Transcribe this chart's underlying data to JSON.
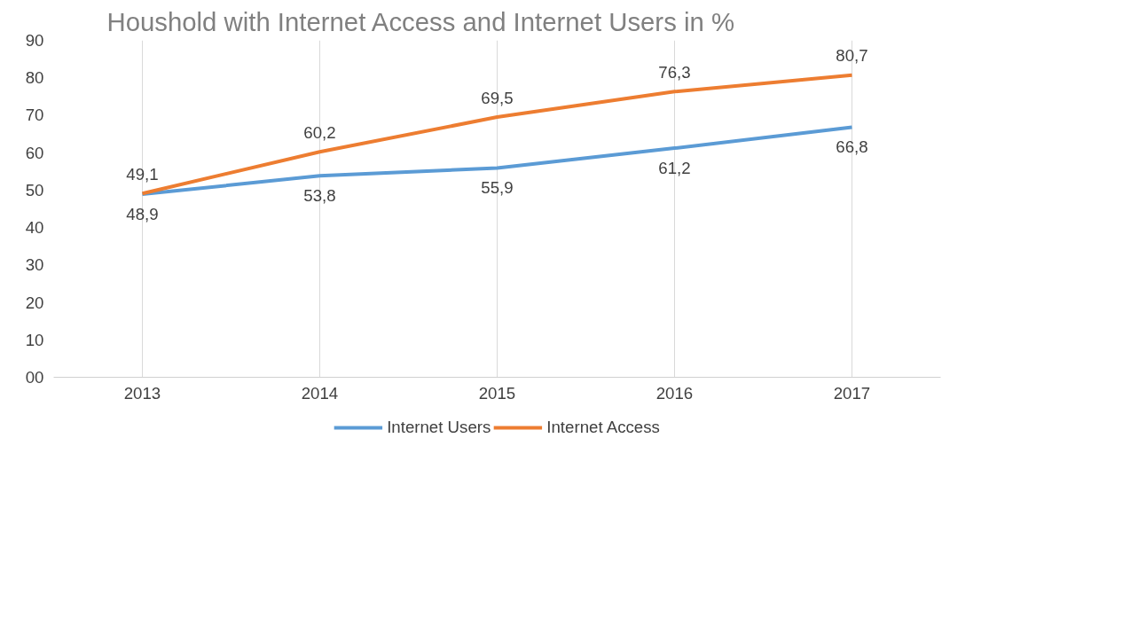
{
  "chart_data": {
    "type": "line",
    "title": "Houshold with Internet Access and Internet Users in %",
    "categories": [
      "2013",
      "2014",
      "2015",
      "2016",
      "2017"
    ],
    "series": [
      {
        "name": "Internet Users",
        "color": "#5b9bd5",
        "values": [
          48.9,
          53.8,
          55.9,
          61.2,
          66.8
        ],
        "value_labels": [
          "48,9",
          "53,8",
          "55,9",
          "61,2",
          "66,8"
        ]
      },
      {
        "name": "Internet Access",
        "color": "#ed7d31",
        "values": [
          49.1,
          60.2,
          69.5,
          76.3,
          80.7
        ],
        "value_labels": [
          "49,1",
          "60,2",
          "69,5",
          "76,3",
          "80,7"
        ]
      }
    ],
    "ylim": [
      0,
      90
    ],
    "yticks": [
      {
        "value": 0,
        "label": "00"
      },
      10,
      20,
      30,
      40,
      50,
      60,
      70,
      80,
      90
    ],
    "grid": "x",
    "legend": "bottom",
    "marker": "none",
    "line_style": "solid"
  }
}
